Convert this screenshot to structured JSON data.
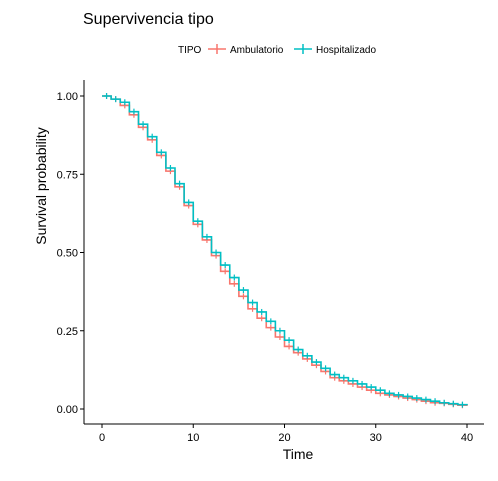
{
  "chart_data": {
    "type": "line",
    "title": "Supervivencia tipo",
    "xlabel": "Time",
    "ylabel": "Survival probability",
    "xlim": [
      0,
      40
    ],
    "ylim": [
      0,
      1
    ],
    "x_ticks": [
      "0",
      "10",
      "20",
      "30",
      "40"
    ],
    "y_ticks": [
      "0.00",
      "0.25",
      "0.50",
      "0.75",
      "1.00"
    ],
    "legend": {
      "title": "TIPO",
      "position": "top"
    },
    "grid": false,
    "series": [
      {
        "name": "Ambulatorio",
        "color": "#F8766D",
        "x": [
          0,
          1,
          2,
          3,
          4,
          5,
          6,
          7,
          8,
          9,
          10,
          11,
          12,
          13,
          14,
          15,
          16,
          17,
          18,
          19,
          20,
          21,
          22,
          23,
          24,
          25,
          26,
          27,
          28,
          29,
          30,
          31,
          32,
          33,
          34,
          35,
          36,
          37,
          38,
          39,
          40
        ],
        "y": [
          1.0,
          0.99,
          0.97,
          0.94,
          0.9,
          0.86,
          0.81,
          0.76,
          0.71,
          0.65,
          0.59,
          0.54,
          0.49,
          0.44,
          0.4,
          0.36,
          0.32,
          0.29,
          0.26,
          0.23,
          0.2,
          0.18,
          0.16,
          0.14,
          0.12,
          0.1,
          0.09,
          0.08,
          0.07,
          0.06,
          0.05,
          0.045,
          0.04,
          0.035,
          0.03,
          0.025,
          0.02,
          0.018,
          0.015,
          0.012,
          0.01
        ]
      },
      {
        "name": "Hospitalizado",
        "color": "#00BFC4",
        "x": [
          0,
          1,
          2,
          3,
          4,
          5,
          6,
          7,
          8,
          9,
          10,
          11,
          12,
          13,
          14,
          15,
          16,
          17,
          18,
          19,
          20,
          21,
          22,
          23,
          24,
          25,
          26,
          27,
          28,
          29,
          30,
          31,
          32,
          33,
          34,
          35,
          36,
          37,
          38,
          39,
          40
        ],
        "y": [
          1.0,
          0.99,
          0.98,
          0.95,
          0.91,
          0.87,
          0.82,
          0.77,
          0.72,
          0.66,
          0.6,
          0.55,
          0.5,
          0.46,
          0.42,
          0.38,
          0.34,
          0.31,
          0.28,
          0.25,
          0.22,
          0.19,
          0.17,
          0.15,
          0.13,
          0.11,
          0.1,
          0.09,
          0.08,
          0.07,
          0.06,
          0.05,
          0.045,
          0.04,
          0.035,
          0.03,
          0.025,
          0.02,
          0.017,
          0.014,
          0.012
        ]
      }
    ]
  }
}
